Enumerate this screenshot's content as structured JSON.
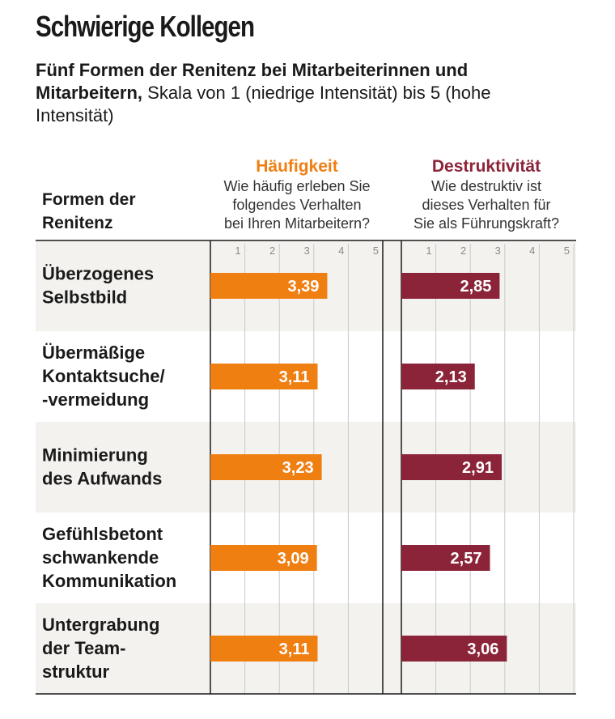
{
  "header": {
    "title": "Schwierige Kollegen",
    "subtitle_bold": "Fünf Formen der Renitenz bei Mitarbeiterinnen und Mitarbeitern,",
    "subtitle_rest": " Skala von 1 (niedrige Intensität) bis 5 (hohe Intensität)"
  },
  "colors": {
    "frequency": "#f07f12",
    "destructiveness": "#8c2439",
    "row_shade": "#f3f2ef"
  },
  "chart_data": {
    "type": "bar",
    "row_header": [
      "Formen der",
      "Renitenz"
    ],
    "categories": [
      [
        "Überzogenes",
        "Selbstbild"
      ],
      [
        "Übermäßige",
        "Kontaktsuche/",
        "-vermeidung"
      ],
      [
        "Minimierung",
        "des Aufwands"
      ],
      [
        "Gefühlsbetont",
        "schwankende",
        "Kommunikation"
      ],
      [
        "Untergrabung",
        "der Team-",
        "struktur"
      ]
    ],
    "xlim": [
      0,
      5
    ],
    "ticks": [
      "1",
      "2",
      "3",
      "4",
      "5"
    ],
    "series": [
      {
        "name": "Häufigkeit",
        "question": [
          "Wie häufig erleben Sie",
          "folgendes Verhalten",
          "bei Ihren Mitarbeitern?"
        ],
        "values": [
          3.39,
          3.11,
          3.23,
          3.09,
          3.11
        ],
        "labels": [
          "3,39",
          "3,11",
          "3,23",
          "3,09",
          "3,11"
        ]
      },
      {
        "name": "Destruktivität",
        "question": [
          "Wie destruktiv ist",
          "dieses Verhalten für",
          "Sie als Führungskraft?"
        ],
        "values": [
          2.85,
          2.13,
          2.91,
          2.57,
          3.06
        ],
        "labels": [
          "2,85",
          "2,13",
          "2,91",
          "2,57",
          "3,06"
        ]
      }
    ]
  }
}
